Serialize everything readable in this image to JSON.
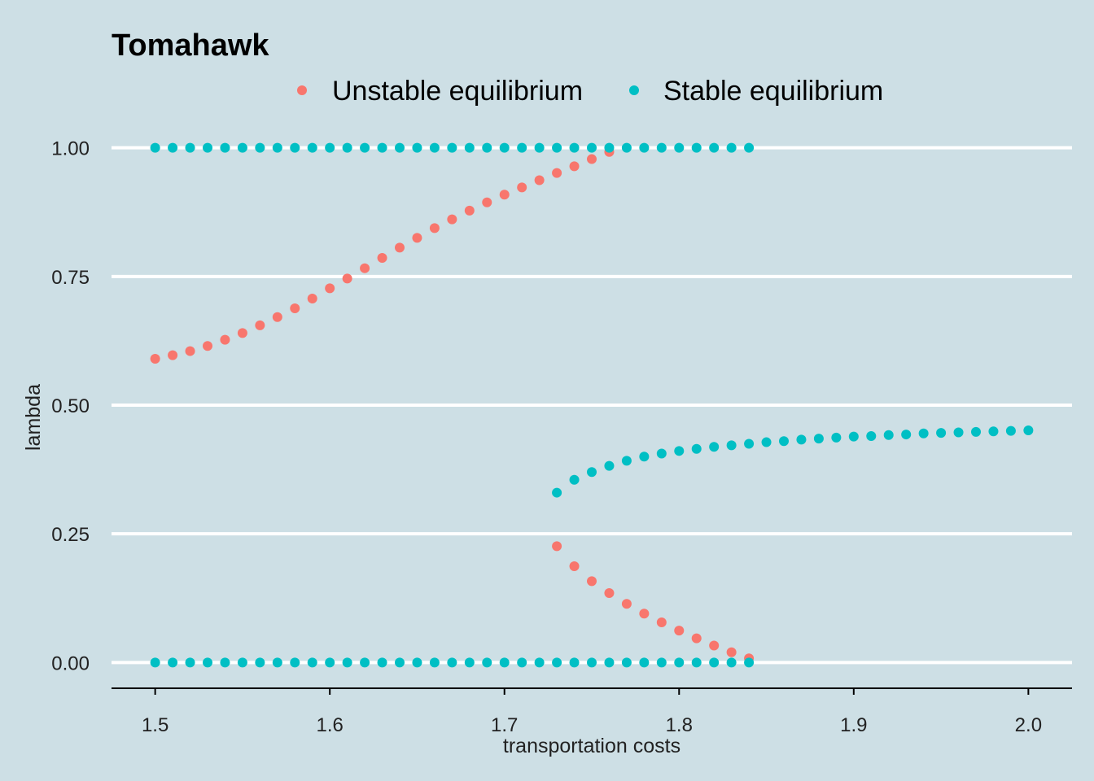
{
  "chart_data": {
    "type": "scatter",
    "title": "Tomahawk",
    "xlabel": "transportation costs",
    "ylabel": "lambda",
    "xlim": [
      1.475,
      2.025
    ],
    "ylim": [
      -0.05,
      1.05
    ],
    "x_ticks": [
      "1.5",
      "1.6",
      "1.7",
      "1.8",
      "1.9",
      "2.0"
    ],
    "y_ticks": [
      "0.00",
      "0.25",
      "0.50",
      "0.75",
      "1.00"
    ],
    "grid": "horizontal major lines",
    "legend_position": "top",
    "background_color": "#cddfe5",
    "grid_color": "#ffffff",
    "series": [
      {
        "name": "Unstable equilibrium",
        "color": "#f8766d",
        "points": [
          [
            1.5,
            0.59
          ],
          [
            1.51,
            0.597
          ],
          [
            1.52,
            0.605
          ],
          [
            1.53,
            0.615
          ],
          [
            1.54,
            0.627
          ],
          [
            1.55,
            0.64
          ],
          [
            1.56,
            0.655
          ],
          [
            1.57,
            0.671
          ],
          [
            1.58,
            0.688
          ],
          [
            1.59,
            0.707
          ],
          [
            1.6,
            0.727
          ],
          [
            1.61,
            0.746
          ],
          [
            1.62,
            0.766
          ],
          [
            1.63,
            0.786
          ],
          [
            1.64,
            0.806
          ],
          [
            1.65,
            0.825
          ],
          [
            1.66,
            0.844
          ],
          [
            1.67,
            0.861
          ],
          [
            1.68,
            0.878
          ],
          [
            1.69,
            0.894
          ],
          [
            1.7,
            0.909
          ],
          [
            1.71,
            0.923
          ],
          [
            1.72,
            0.937
          ],
          [
            1.73,
            0.951
          ],
          [
            1.74,
            0.964
          ],
          [
            1.75,
            0.978
          ],
          [
            1.76,
            0.992
          ],
          [
            1.73,
            0.226
          ],
          [
            1.74,
            0.187
          ],
          [
            1.75,
            0.158
          ],
          [
            1.76,
            0.135
          ],
          [
            1.77,
            0.114
          ],
          [
            1.78,
            0.095
          ],
          [
            1.79,
            0.078
          ],
          [
            1.8,
            0.062
          ],
          [
            1.81,
            0.047
          ],
          [
            1.82,
            0.033
          ],
          [
            1.83,
            0.02
          ],
          [
            1.84,
            0.008
          ]
        ]
      },
      {
        "name": "Stable equilibrium",
        "color": "#00bfc4",
        "points": [
          [
            1.5,
            1.0
          ],
          [
            1.51,
            1.0
          ],
          [
            1.52,
            1.0
          ],
          [
            1.53,
            1.0
          ],
          [
            1.54,
            1.0
          ],
          [
            1.55,
            1.0
          ],
          [
            1.56,
            1.0
          ],
          [
            1.57,
            1.0
          ],
          [
            1.58,
            1.0
          ],
          [
            1.59,
            1.0
          ],
          [
            1.6,
            1.0
          ],
          [
            1.61,
            1.0
          ],
          [
            1.62,
            1.0
          ],
          [
            1.63,
            1.0
          ],
          [
            1.64,
            1.0
          ],
          [
            1.65,
            1.0
          ],
          [
            1.66,
            1.0
          ],
          [
            1.67,
            1.0
          ],
          [
            1.68,
            1.0
          ],
          [
            1.69,
            1.0
          ],
          [
            1.7,
            1.0
          ],
          [
            1.71,
            1.0
          ],
          [
            1.72,
            1.0
          ],
          [
            1.73,
            1.0
          ],
          [
            1.74,
            1.0
          ],
          [
            1.75,
            1.0
          ],
          [
            1.76,
            1.0
          ],
          [
            1.77,
            1.0
          ],
          [
            1.78,
            1.0
          ],
          [
            1.79,
            1.0
          ],
          [
            1.8,
            1.0
          ],
          [
            1.81,
            1.0
          ],
          [
            1.82,
            1.0
          ],
          [
            1.83,
            1.0
          ],
          [
            1.84,
            1.0
          ],
          [
            1.5,
            0.0
          ],
          [
            1.51,
            0.0
          ],
          [
            1.52,
            0.0
          ],
          [
            1.53,
            0.0
          ],
          [
            1.54,
            0.0
          ],
          [
            1.55,
            0.0
          ],
          [
            1.56,
            0.0
          ],
          [
            1.57,
            0.0
          ],
          [
            1.58,
            0.0
          ],
          [
            1.59,
            0.0
          ],
          [
            1.6,
            0.0
          ],
          [
            1.61,
            0.0
          ],
          [
            1.62,
            0.0
          ],
          [
            1.63,
            0.0
          ],
          [
            1.64,
            0.0
          ],
          [
            1.65,
            0.0
          ],
          [
            1.66,
            0.0
          ],
          [
            1.67,
            0.0
          ],
          [
            1.68,
            0.0
          ],
          [
            1.69,
            0.0
          ],
          [
            1.7,
            0.0
          ],
          [
            1.71,
            0.0
          ],
          [
            1.72,
            0.0
          ],
          [
            1.73,
            0.0
          ],
          [
            1.74,
            0.0
          ],
          [
            1.75,
            0.0
          ],
          [
            1.76,
            0.0
          ],
          [
            1.77,
            0.0
          ],
          [
            1.78,
            0.0
          ],
          [
            1.79,
            0.0
          ],
          [
            1.8,
            0.0
          ],
          [
            1.81,
            0.0
          ],
          [
            1.82,
            0.0
          ],
          [
            1.83,
            0.0
          ],
          [
            1.84,
            0.0
          ],
          [
            1.73,
            0.33
          ],
          [
            1.74,
            0.355
          ],
          [
            1.75,
            0.37
          ],
          [
            1.76,
            0.382
          ],
          [
            1.77,
            0.392
          ],
          [
            1.78,
            0.4
          ],
          [
            1.79,
            0.406
          ],
          [
            1.8,
            0.411
          ],
          [
            1.81,
            0.415
          ],
          [
            1.82,
            0.419
          ],
          [
            1.83,
            0.422
          ],
          [
            1.84,
            0.425
          ],
          [
            1.85,
            0.428
          ],
          [
            1.86,
            0.43
          ],
          [
            1.87,
            0.433
          ],
          [
            1.88,
            0.435
          ],
          [
            1.89,
            0.437
          ],
          [
            1.9,
            0.439
          ],
          [
            1.91,
            0.44
          ],
          [
            1.92,
            0.442
          ],
          [
            1.93,
            0.443
          ],
          [
            1.94,
            0.445
          ],
          [
            1.95,
            0.446
          ],
          [
            1.96,
            0.447
          ],
          [
            1.97,
            0.448
          ],
          [
            1.98,
            0.449
          ],
          [
            1.99,
            0.45
          ],
          [
            2.0,
            0.451
          ]
        ]
      }
    ]
  }
}
